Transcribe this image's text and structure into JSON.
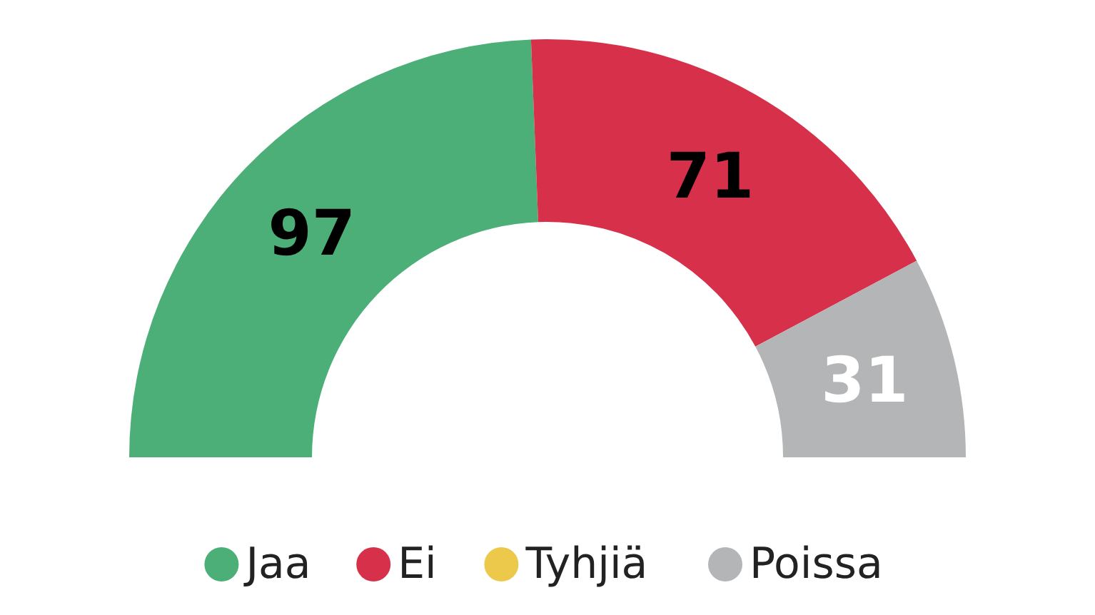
{
  "chart_data": {
    "type": "donut",
    "categories": [
      "Jaa",
      "Ei",
      "Tyhjiä",
      "Poissa"
    ],
    "values": [
      97,
      71,
      0,
      31
    ],
    "colors": [
      "#4caf78",
      "#d7304a",
      "#ecc94b",
      "#b4b5b7"
    ],
    "data_labels": true,
    "legend": "bottom"
  }
}
